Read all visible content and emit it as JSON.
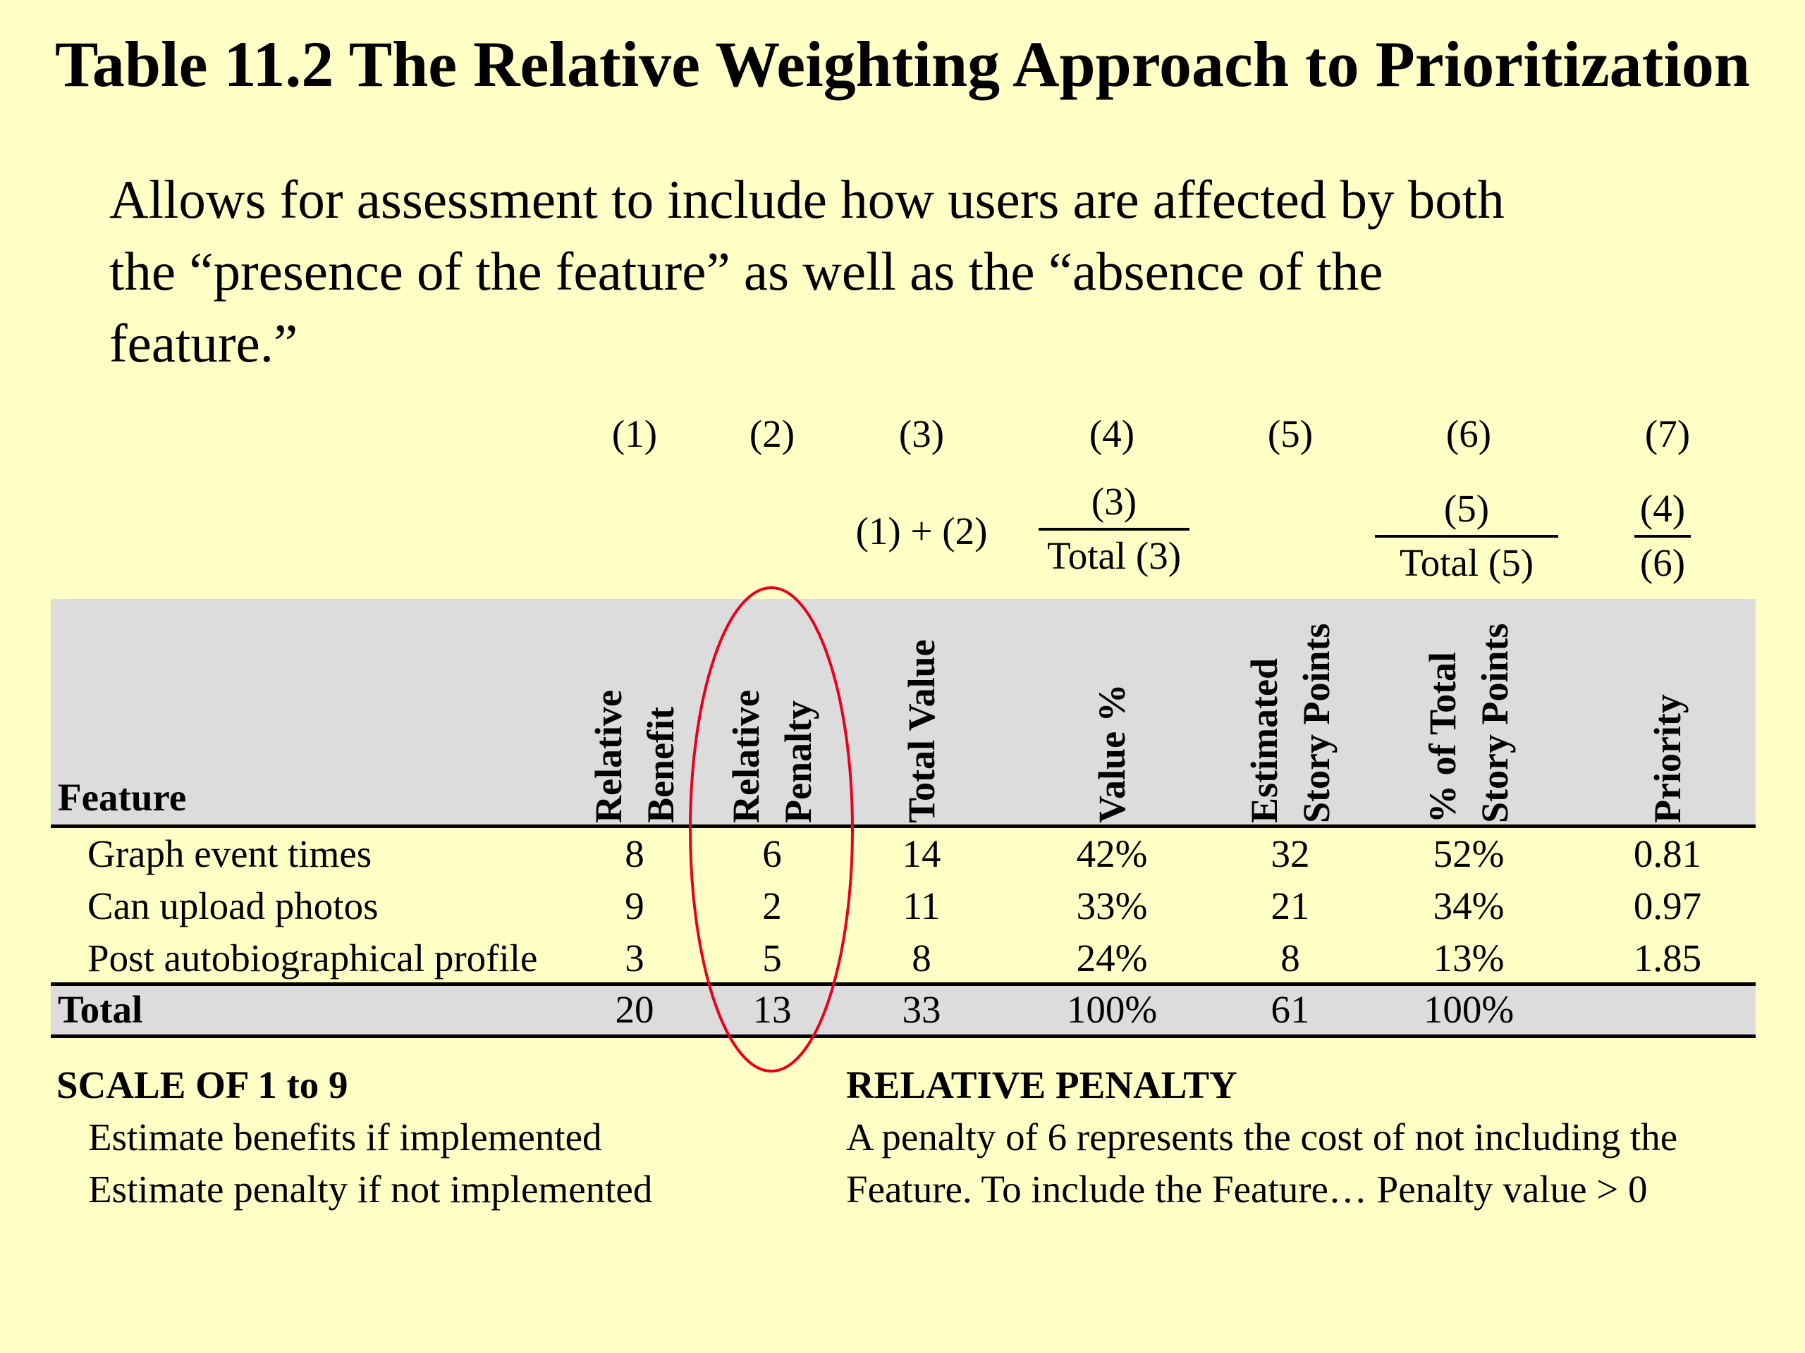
{
  "title": "Table 11.2 The Relative Weighting Approach to Prioritization",
  "intro": {
    "line1": "Allows for assessment to include how users are affected by both",
    "line2": "the “presence of the feature” as well as the “absence of the",
    "line3": "feature.”"
  },
  "column_numbers": [
    "(1)",
    "(2)",
    "(3)",
    "(4)",
    "(5)",
    "(6)",
    "(7)"
  ],
  "formulas": {
    "col3": "(1) + (2)",
    "col4_num": "(3)",
    "col4_den": "Total (3)",
    "col6_num": "(5)",
    "col6_den": "Total (5)",
    "col7_num": "(4)",
    "col7_den": "(6)"
  },
  "headers": {
    "feature": "Feature",
    "relative_benefit": [
      "Relative",
      "Benefit"
    ],
    "relative_penalty": [
      "Relative",
      "Penalty"
    ],
    "total_value": [
      "Total Value"
    ],
    "value_pct": [
      "Value %"
    ],
    "estimated_story_points": [
      "Estimated",
      "Story Points"
    ],
    "pct_total_story_points": [
      "% of Total",
      "Story Points"
    ],
    "priority": [
      "Priority"
    ]
  },
  "rows": [
    {
      "feature": "Graph event times",
      "benefit": "8",
      "penalty": "6",
      "total_value": "14",
      "value_pct": "42%",
      "story_points": "32",
      "pct_story_points": "52%",
      "priority": "0.81"
    },
    {
      "feature": "Can upload photos",
      "benefit": "9",
      "penalty": "2",
      "total_value": "11",
      "value_pct": "33%",
      "story_points": "21",
      "pct_story_points": "34%",
      "priority": "0.97"
    },
    {
      "feature": "Post autobiographical profile",
      "benefit": "3",
      "penalty": "5",
      "total_value": "8",
      "value_pct": "24%",
      "story_points": "8",
      "pct_story_points": "13%",
      "priority": "1.85"
    }
  ],
  "total_row": {
    "label": "Total",
    "benefit": "20",
    "penalty": "13",
    "total_value": "33",
    "value_pct": "100%",
    "story_points": "61",
    "pct_story_points": "100%"
  },
  "scale": {
    "title": "SCALE OF 1 to 9",
    "line1": "Estimate benefits if implemented",
    "line2": "Estimate penalty if not implemented"
  },
  "penalty_note": {
    "title": "RELATIVE PENALTY",
    "line1": "A penalty of 6 represents the cost of not including the",
    "line2": "Feature. To include the Feature… Penalty value > 0"
  },
  "colors": {
    "background": "#ffffc6",
    "header_band": "#dcdcdc",
    "highlight_ellipse": "#e8001c"
  }
}
